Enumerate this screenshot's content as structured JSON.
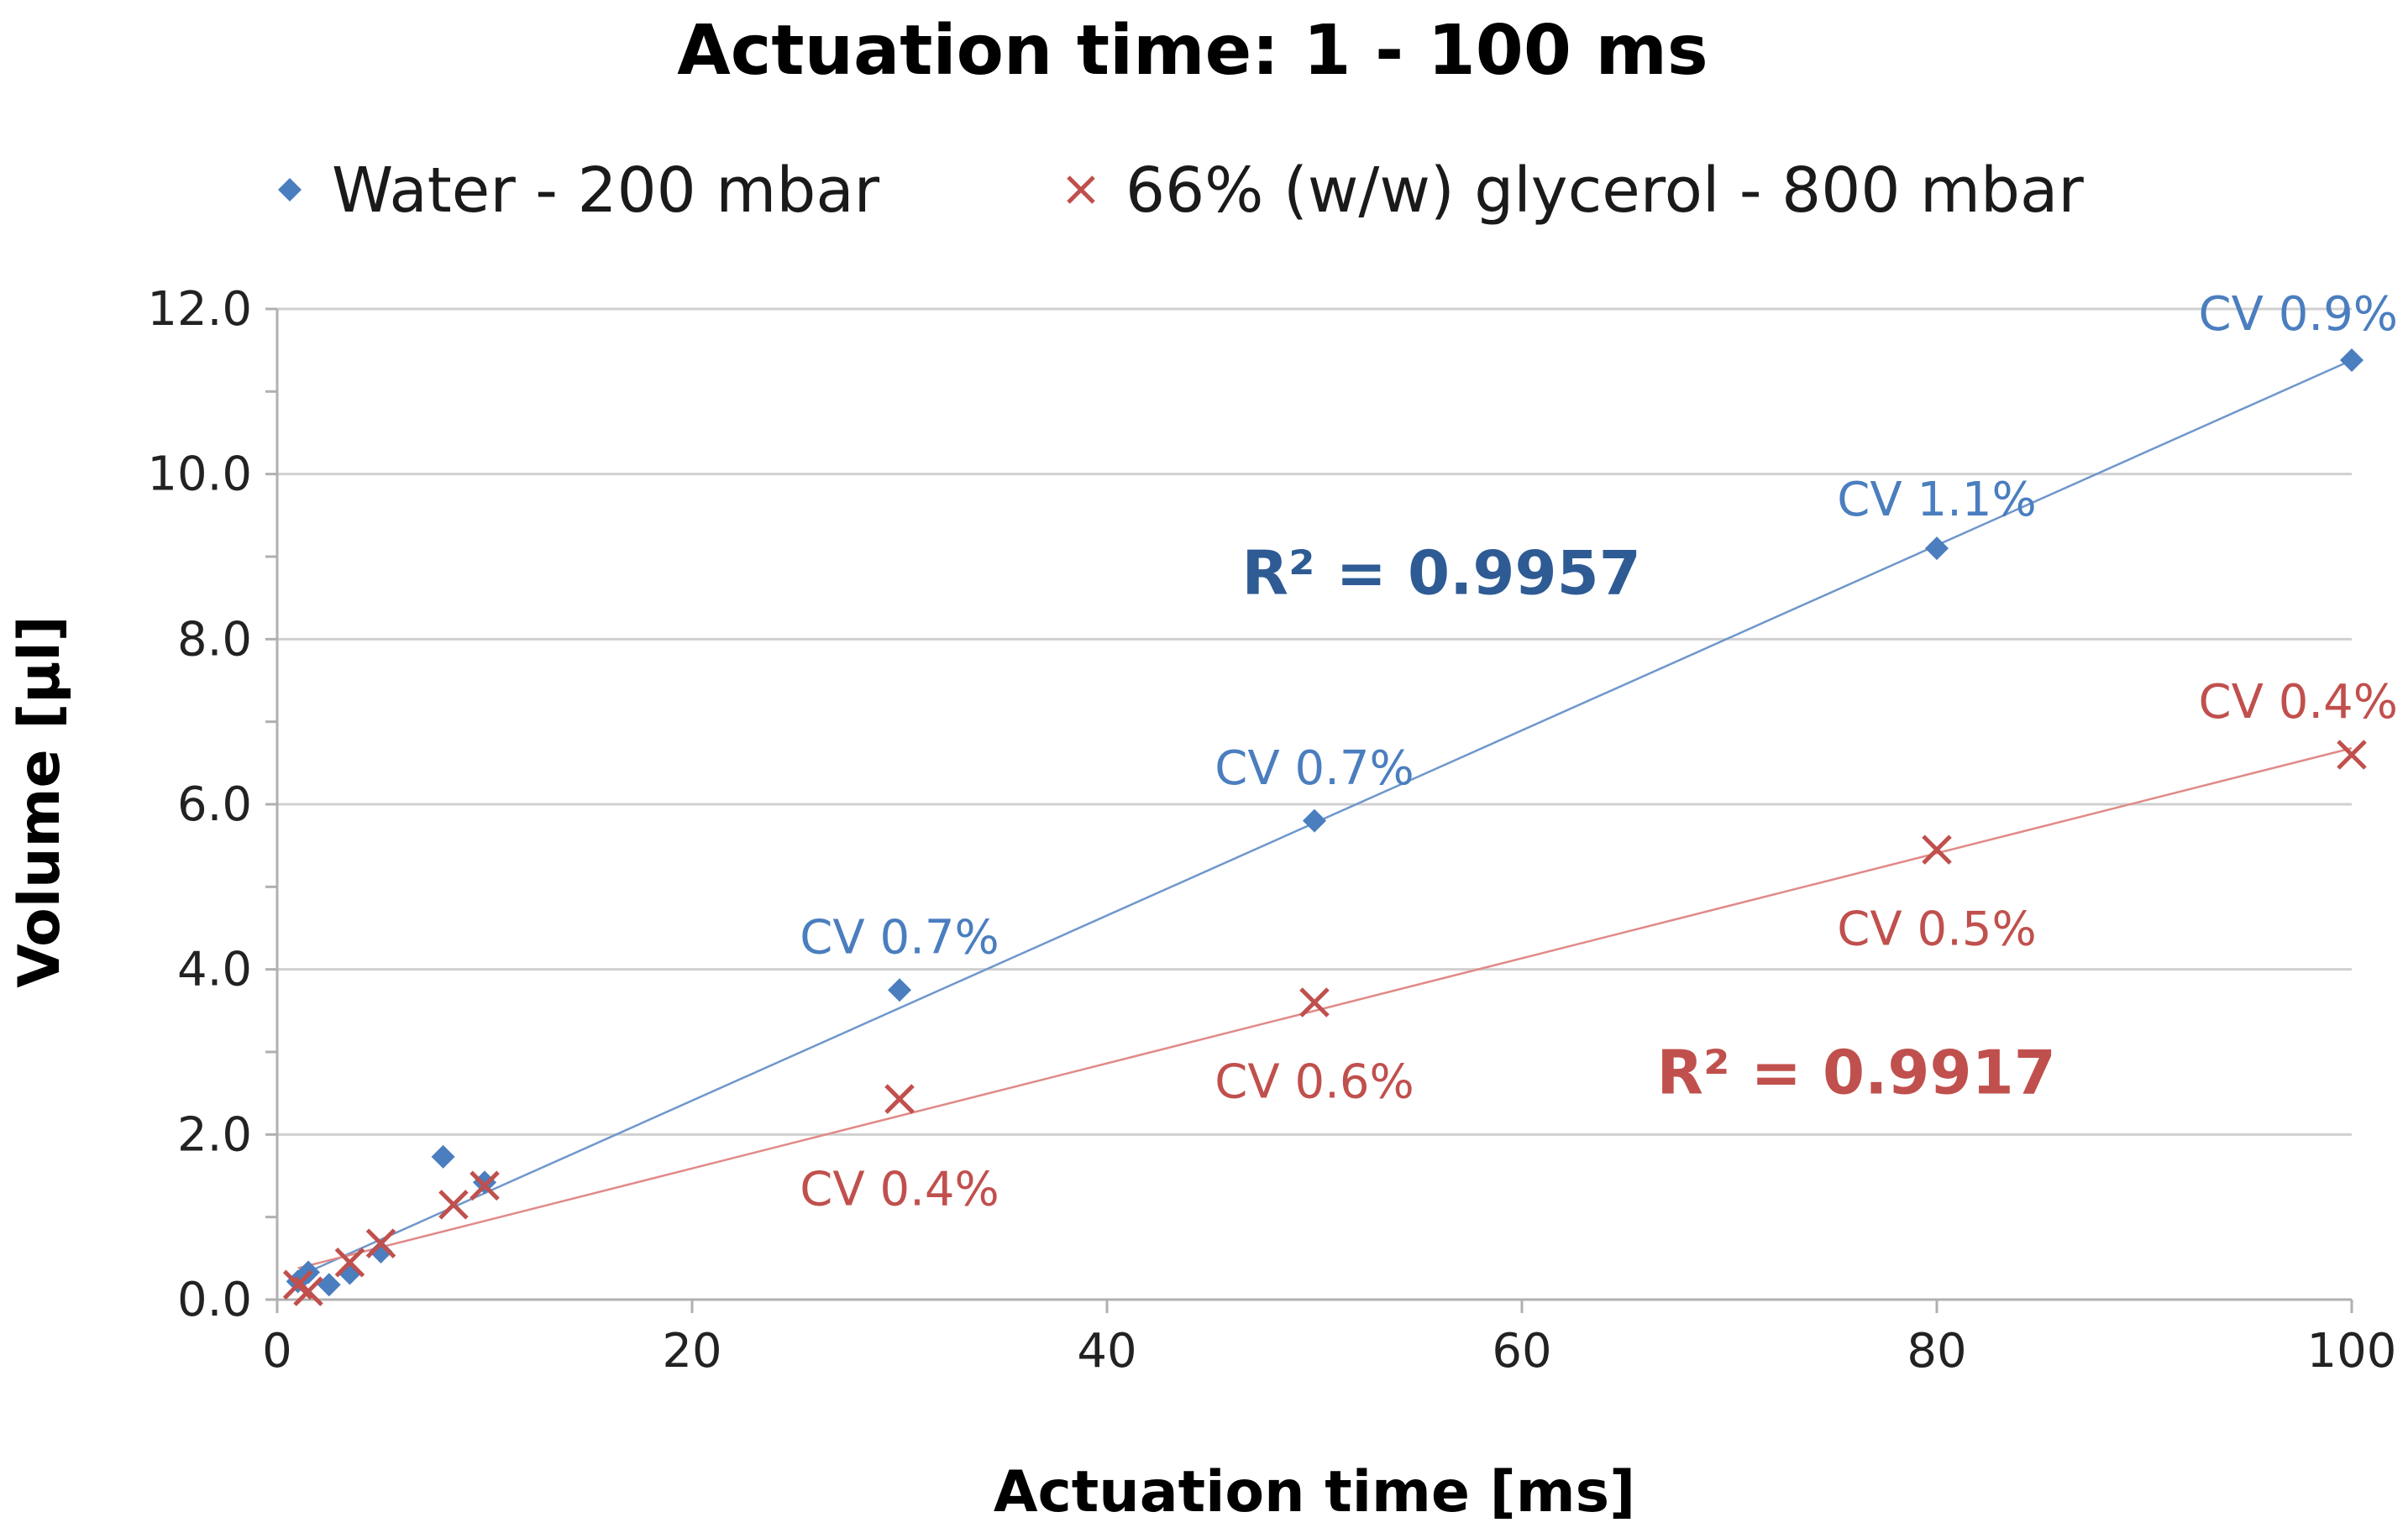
{
  "chart_data": {
    "type": "scatter",
    "title": "Actuation time: 1 - 100 ms",
    "xlabel": "Actuation time [ms]",
    "ylabel": "Volume [µl]",
    "xlim": [
      0,
      100
    ],
    "ylim": [
      0,
      12
    ],
    "x_ticks": [
      "0",
      "20",
      "40",
      "60",
      "80",
      "100"
    ],
    "y_ticks": [
      "0.0",
      "2.0",
      "4.0",
      "6.0",
      "8.0",
      "10.0",
      "12.0"
    ],
    "grid": "horizontal",
    "legend_position": "top",
    "series": [
      {
        "name": "Water - 200 mbar",
        "marker": "diamond",
        "color": "#4a7ebf",
        "trendline_color": "#6f97cc",
        "r2_color": "#2e5b94",
        "r2": "R² = 0.9957",
        "x": [
          1,
          1.5,
          2.5,
          3.5,
          5,
          8,
          10,
          30,
          50,
          80,
          100
        ],
        "y": [
          0.22,
          0.33,
          0.18,
          0.32,
          0.58,
          1.73,
          1.42,
          3.75,
          5.8,
          9.1,
          11.38
        ],
        "trendline": [
          [
            1,
            0.28
          ],
          [
            100,
            11.38
          ]
        ],
        "cv_labels": [
          {
            "text": "CV 0.7%",
            "x": 30,
            "y": 4.4
          },
          {
            "text": "CV 0.7%",
            "x": 50,
            "y": 6.45
          },
          {
            "text": "CV 1.1%",
            "x": 80,
            "y": 9.7
          },
          {
            "text": "CV 0.9%",
            "x": 100,
            "y": 11.95
          }
        ]
      },
      {
        "name": "66% (w/w) glycerol - 800 mbar",
        "marker": "x",
        "color": "#c0504d",
        "trendline_color": "#e08a88",
        "r2_color": "#c0504d",
        "r2": "R² = 0.9917",
        "x": [
          1,
          1.5,
          3.5,
          5,
          8.5,
          10,
          30,
          50,
          80,
          100
        ],
        "y": [
          0.18,
          0.1,
          0.45,
          0.68,
          1.15,
          1.38,
          2.43,
          3.6,
          5.45,
          6.6
        ],
        "trendline": [
          [
            1,
            0.38
          ],
          [
            100,
            6.68
          ]
        ],
        "cv_labels": [
          {
            "text": "CV 0.4%",
            "x": 30,
            "y": 1.35
          },
          {
            "text": "CV 0.6%",
            "x": 50,
            "y": 2.65
          },
          {
            "text": "CV 0.5%",
            "x": 80,
            "y": 4.5
          },
          {
            "text": "CV 0.4%",
            "x": 100,
            "y": 7.25
          }
        ]
      }
    ]
  }
}
